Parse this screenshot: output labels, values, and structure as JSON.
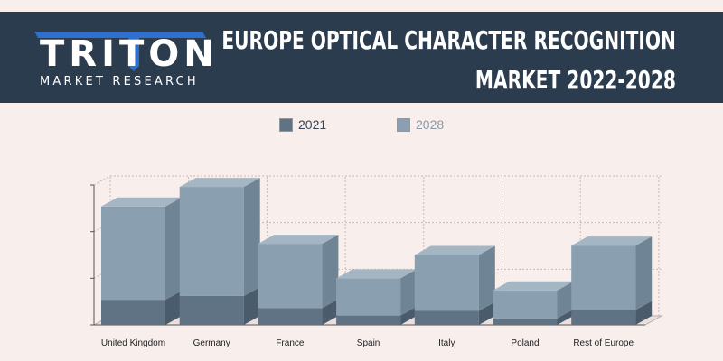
{
  "header": {
    "title_line1": "EUROPE OPTICAL CHARACTER RECOGNITION",
    "title_line2": "MARKET  2022-2028",
    "logo_text": "TRITON",
    "logo_subtext": "MARKET RESEARCH"
  },
  "colors": {
    "background": "#f8eeec",
    "header": "#2b3c4f",
    "logo_accent": "#2f6fd0",
    "series_2021": "#5f7384",
    "series_2028": "#8aa0b0"
  },
  "chart_data": {
    "type": "bar",
    "stacked": true,
    "style": "3d",
    "categories": [
      "United Kingdom",
      "Germany",
      "France",
      "Spain",
      "Italy",
      "Poland",
      "Rest of Europe"
    ],
    "series": [
      {
        "name": "2021",
        "values": [
          27,
          31,
          18,
          10,
          15,
          7,
          16
        ]
      },
      {
        "name": "2028",
        "values": [
          100,
          117,
          69,
          40,
          60,
          30,
          69
        ]
      }
    ],
    "ylim": [
      0,
      150
    ],
    "legend_position": "top",
    "grid": true
  }
}
